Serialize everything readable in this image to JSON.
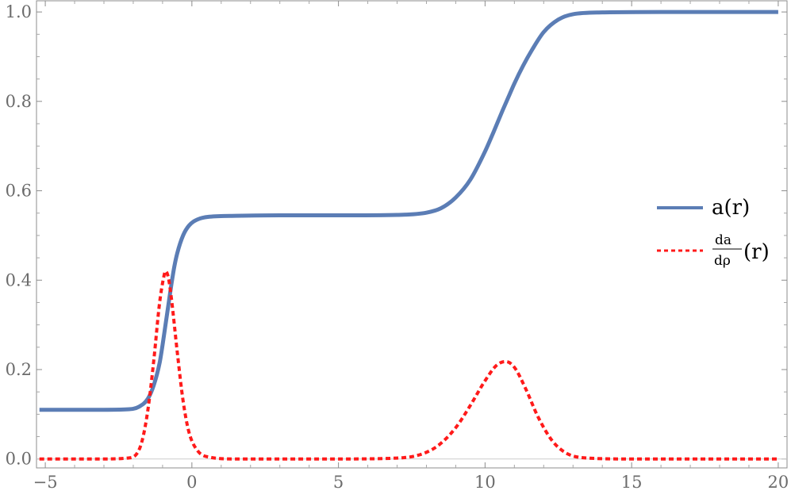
{
  "chart_data": {
    "type": "line",
    "title": "",
    "xlabel": "",
    "ylabel": "",
    "xlim": [
      -5.3,
      20.3
    ],
    "ylim": [
      -0.02,
      1.025
    ],
    "xticks": [
      -5,
      0,
      5,
      10,
      15,
      20
    ],
    "yticks": [
      0.0,
      0.2,
      0.4,
      0.6,
      0.8,
      1.0
    ],
    "xtick_labels": [
      "−5",
      "0",
      "5",
      "10",
      "15",
      "20"
    ],
    "ytick_labels": [
      "0.0",
      "0.2",
      "0.4",
      "0.6",
      "0.8",
      "1.0"
    ],
    "grid": false,
    "legend_position": "right",
    "series": [
      {
        "name": "a(r)",
        "color": "#5b7db5",
        "style": "solid",
        "x": [
          -5.2,
          -3,
          -2.2,
          -1.8,
          -1.5,
          -1.3,
          -1.1,
          -1.0,
          -0.9,
          -0.8,
          -0.7,
          -0.6,
          -0.5,
          -0.3,
          -0.1,
          0.2,
          0.6,
          1.5,
          3,
          5,
          7,
          8,
          8.5,
          9,
          9.5,
          10,
          10.3,
          10.6,
          10.8,
          11,
          11.3,
          11.6,
          12,
          12.5,
          13,
          14,
          16,
          20
        ],
        "y": [
          0.11,
          0.11,
          0.111,
          0.117,
          0.135,
          0.165,
          0.215,
          0.255,
          0.3,
          0.345,
          0.39,
          0.43,
          0.46,
          0.5,
          0.522,
          0.536,
          0.542,
          0.544,
          0.545,
          0.545,
          0.546,
          0.551,
          0.561,
          0.585,
          0.625,
          0.688,
          0.733,
          0.78,
          0.81,
          0.84,
          0.88,
          0.915,
          0.955,
          0.983,
          0.995,
          0.999,
          1.0,
          1.0
        ]
      },
      {
        "name": "da/dρ(r)",
        "color": "#ff1a1a",
        "style": "dashed",
        "x": [
          -5.2,
          -3,
          -2.2,
          -1.9,
          -1.7,
          -1.5,
          -1.3,
          -1.1,
          -0.95,
          -0.9,
          -0.8,
          -0.7,
          -0.5,
          -0.3,
          -0.1,
          0.2,
          0.6,
          1.5,
          3,
          5,
          7,
          7.8,
          8.4,
          9,
          9.5,
          10,
          10.4,
          10.7,
          11,
          11.4,
          11.8,
          12.3,
          12.8,
          13.5,
          15,
          20
        ],
        "y": [
          0.0,
          0.0,
          0.002,
          0.01,
          0.04,
          0.11,
          0.22,
          0.35,
          0.41,
          0.42,
          0.405,
          0.36,
          0.24,
          0.13,
          0.06,
          0.018,
          0.004,
          0.0,
          0.0,
          0.0,
          0.002,
          0.01,
          0.03,
          0.07,
          0.12,
          0.175,
          0.21,
          0.218,
          0.205,
          0.155,
          0.095,
          0.04,
          0.012,
          0.002,
          0.0,
          0.0
        ]
      }
    ]
  },
  "legend": {
    "entry_1": "a(r)",
    "entry_2_num": "da",
    "entry_2_den": "dρ",
    "entry_2_suffix": "(r)"
  }
}
